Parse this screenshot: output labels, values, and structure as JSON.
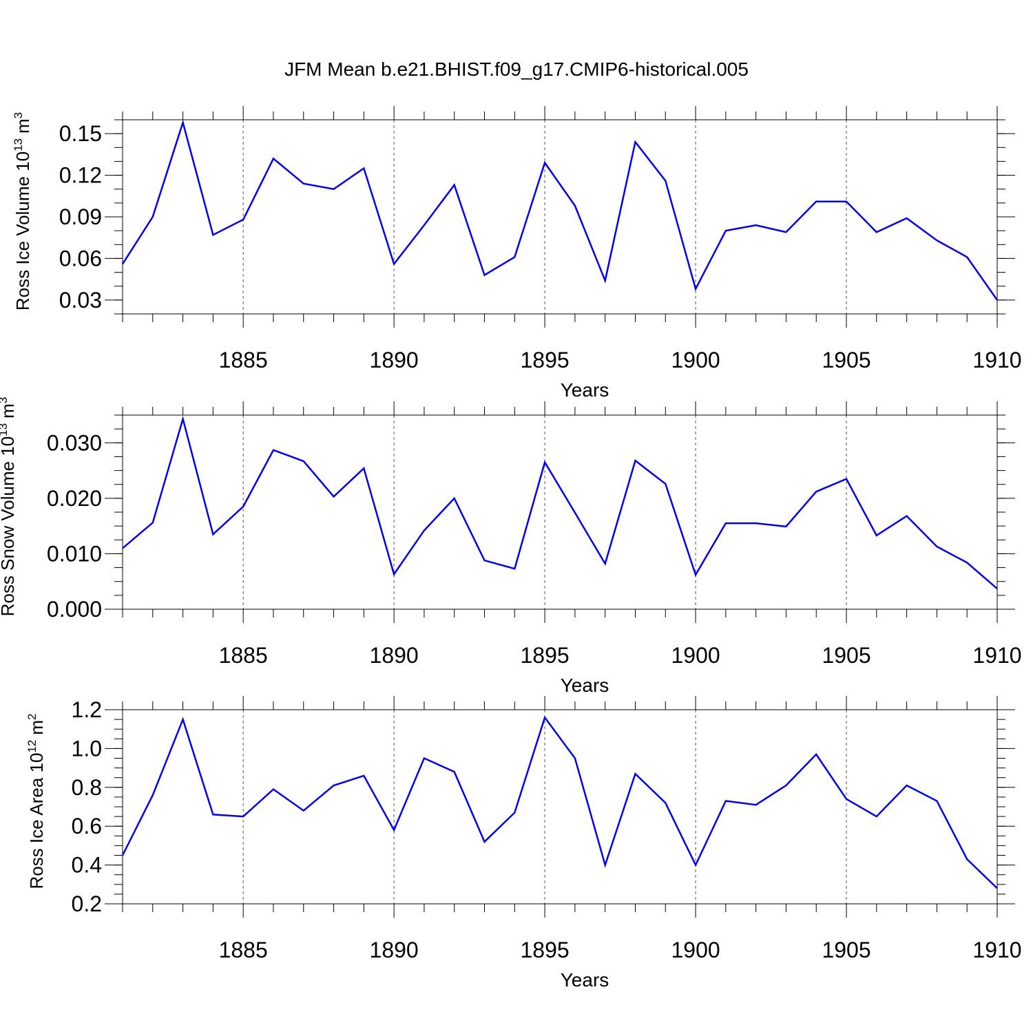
{
  "figure": {
    "title": "JFM Mean b.e21.BHIST.f09_g17.CMIP6-historical.005",
    "line_color": "#0000ee"
  },
  "chart_data": [
    {
      "type": "line",
      "title": "",
      "xlabel": "Years",
      "ylabel": "Ross Ice Volume 10",
      "ylabel_exponent": "13",
      "ylabel_unit": "m",
      "ylabel_unit_exponent": "3",
      "xlim": [
        1881,
        1910
      ],
      "ylim": [
        0.02,
        0.16
      ],
      "xticks": [
        1885,
        1890,
        1895,
        1900,
        1905,
        1910
      ],
      "xtick_labels": [
        "1885",
        "1890",
        "1895",
        "1900",
        "1905",
        "1910"
      ],
      "yticks": [
        0.03,
        0.06,
        0.09,
        0.12,
        0.15
      ],
      "ytick_labels": [
        "0.03",
        "0.06",
        "0.09",
        "0.12",
        "0.15"
      ],
      "y_minor_step": 0.01,
      "grid": "vertical-dashed",
      "x": [
        1881,
        1882,
        1883,
        1884,
        1885,
        1886,
        1887,
        1888,
        1889,
        1890,
        1891,
        1892,
        1893,
        1894,
        1895,
        1896,
        1897,
        1898,
        1899,
        1900,
        1901,
        1902,
        1903,
        1904,
        1905,
        1906,
        1907,
        1908,
        1909,
        1910
      ],
      "series": [
        {
          "values": [
            0.056,
            0.09,
            0.158,
            0.077,
            0.088,
            0.132,
            0.114,
            0.11,
            0.125,
            0.056,
            0.084,
            0.113,
            0.048,
            0.061,
            0.129,
            0.098,
            0.044,
            0.144,
            0.116,
            0.038,
            0.08,
            0.084,
            0.079,
            0.101,
            0.101,
            0.079,
            0.089,
            0.073,
            0.061,
            0.03
          ]
        }
      ]
    },
    {
      "type": "line",
      "title": "",
      "xlabel": "Years",
      "ylabel": "Ross Snow Volume 10",
      "ylabel_exponent": "13",
      "ylabel_unit": "m",
      "ylabel_unit_exponent": "3",
      "xlim": [
        1881,
        1910
      ],
      "ylim": [
        0.0,
        0.035
      ],
      "xticks": [
        1885,
        1890,
        1895,
        1900,
        1905,
        1910
      ],
      "xtick_labels": [
        "1885",
        "1890",
        "1895",
        "1900",
        "1905",
        "1910"
      ],
      "yticks": [
        0.0,
        0.01,
        0.02,
        0.03
      ],
      "ytick_labels": [
        "0.000",
        "0.010",
        "0.020",
        "0.030"
      ],
      "y_minor_step": 0.0025,
      "grid": "vertical-dashed",
      "x": [
        1881,
        1882,
        1883,
        1884,
        1885,
        1886,
        1887,
        1888,
        1889,
        1890,
        1891,
        1892,
        1893,
        1894,
        1895,
        1896,
        1897,
        1898,
        1899,
        1900,
        1901,
        1902,
        1903,
        1904,
        1905,
        1906,
        1907,
        1908,
        1909,
        1910
      ],
      "series": [
        {
          "values": [
            0.011,
            0.0156,
            0.0343,
            0.0135,
            0.0185,
            0.0287,
            0.0267,
            0.0203,
            0.0254,
            0.0063,
            0.0142,
            0.02,
            0.0088,
            0.0073,
            0.0265,
            0.0174,
            0.0082,
            0.0268,
            0.0226,
            0.0062,
            0.0155,
            0.0155,
            0.0149,
            0.0212,
            0.0235,
            0.0133,
            0.0168,
            0.0113,
            0.0084,
            0.0037
          ]
        }
      ]
    },
    {
      "type": "line",
      "title": "",
      "xlabel": "Years",
      "ylabel": "Ross Ice Area 10",
      "ylabel_exponent": "12",
      "ylabel_unit": "m",
      "ylabel_unit_exponent": "2",
      "xlim": [
        1881,
        1910
      ],
      "ylim": [
        0.2,
        1.2
      ],
      "xticks": [
        1885,
        1890,
        1895,
        1900,
        1905,
        1910
      ],
      "xtick_labels": [
        "1885",
        "1890",
        "1895",
        "1900",
        "1905",
        "1910"
      ],
      "yticks": [
        0.2,
        0.4,
        0.6,
        0.8,
        1.0,
        1.2
      ],
      "ytick_labels": [
        "0.2",
        "0.4",
        "0.6",
        "0.8",
        "1.0",
        "1.2"
      ],
      "y_minor_step": 0.05,
      "grid": "vertical-dashed",
      "x": [
        1881,
        1882,
        1883,
        1884,
        1885,
        1886,
        1887,
        1888,
        1889,
        1890,
        1891,
        1892,
        1893,
        1894,
        1895,
        1896,
        1897,
        1898,
        1899,
        1900,
        1901,
        1902,
        1903,
        1904,
        1905,
        1906,
        1907,
        1908,
        1909,
        1910
      ],
      "series": [
        {
          "values": [
            0.45,
            0.76,
            1.15,
            0.66,
            0.65,
            0.79,
            0.68,
            0.81,
            0.86,
            0.58,
            0.95,
            0.88,
            0.52,
            0.67,
            1.16,
            0.95,
            0.4,
            0.87,
            0.72,
            0.4,
            0.73,
            0.71,
            0.81,
            0.97,
            0.74,
            0.65,
            0.81,
            0.73,
            0.43,
            0.28
          ]
        }
      ]
    }
  ]
}
